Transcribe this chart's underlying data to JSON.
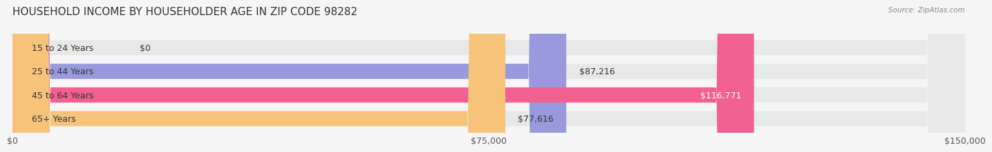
{
  "title": "HOUSEHOLD INCOME BY HOUSEHOLDER AGE IN ZIP CODE 98282",
  "source": "Source: ZipAtlas.com",
  "categories": [
    "15 to 24 Years",
    "25 to 44 Years",
    "45 to 64 Years",
    "65+ Years"
  ],
  "values": [
    0,
    87216,
    116771,
    77616
  ],
  "bar_colors": [
    "#7dd8d8",
    "#9999dd",
    "#f06090",
    "#f7c27a"
  ],
  "xlim": [
    0,
    150000
  ],
  "xtick_labels": [
    "$0",
    "$75,000",
    "$150,000"
  ],
  "value_labels": [
    "$0",
    "$87,216",
    "$116,771",
    "$77,616"
  ],
  "background_color": "#f5f5f5",
  "bar_background_color": "#e8e8e8",
  "title_fontsize": 11,
  "tick_fontsize": 9,
  "label_fontsize": 9,
  "value_fontsize": 9
}
